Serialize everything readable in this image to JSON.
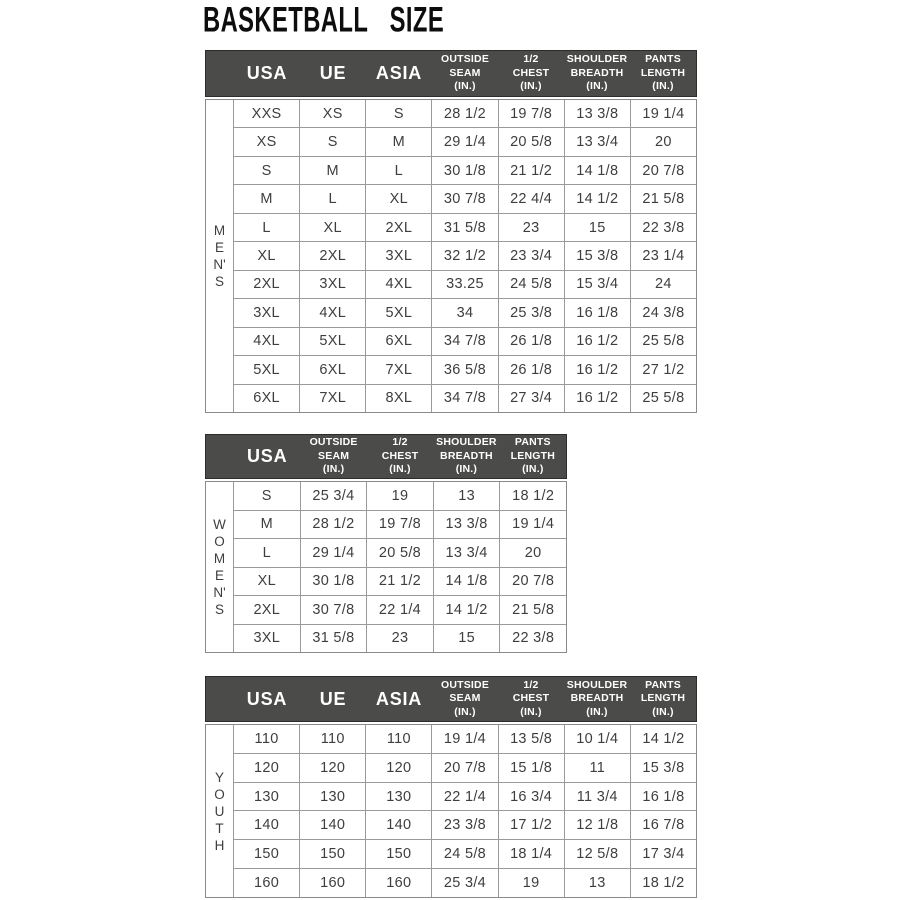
{
  "page": {
    "title": "BASKETBALL SIZE"
  },
  "colors": {
    "header_bg": "#4b4b4a",
    "header_text": "#ffffff",
    "body_text": "#3e3e3e",
    "grid_line": "#9a9a9a",
    "outer_border": "#8a8a8a",
    "title_text": "#0d0d0d",
    "page_bg": "#ffffff"
  },
  "tables": [
    {
      "name": "mens",
      "side_label": "M\nE\nN'\nS",
      "columns": [
        "USA",
        "UE",
        "ASIA",
        "OUTSIDE\nSEAM\n(IN.)",
        "1/2\nCHEST\n(IN.)",
        "SHOULDER\nBREADTH\n(IN.)",
        "PANTS\nLENGTH\n(IN.)"
      ],
      "rows": [
        [
          "XXS",
          "XS",
          "S",
          "28 1/2",
          "19 7/8",
          "13 3/8",
          "19 1/4"
        ],
        [
          "XS",
          "S",
          "M",
          "29 1/4",
          "20 5/8",
          "13 3/4",
          "20"
        ],
        [
          "S",
          "M",
          "L",
          "30 1/8",
          "21 1/2",
          "14 1/8",
          "20 7/8"
        ],
        [
          "M",
          "L",
          "XL",
          "30 7/8",
          "22 4/4",
          "14 1/2",
          "21 5/8"
        ],
        [
          "L",
          "XL",
          "2XL",
          "31 5/8",
          "23",
          "15",
          "22 3/8"
        ],
        [
          "XL",
          "2XL",
          "3XL",
          "32 1/2",
          "23 3/4",
          "15 3/8",
          "23 1/4"
        ],
        [
          "2XL",
          "3XL",
          "4XL",
          "33.25",
          "24 5/8",
          "15 3/4",
          "24"
        ],
        [
          "3XL",
          "4XL",
          "5XL",
          "34",
          "25 3/8",
          "16 1/8",
          "24 3/8"
        ],
        [
          "4XL",
          "5XL",
          "6XL",
          "34 7/8",
          "26 1/8",
          "16 1/2",
          "25 5/8"
        ],
        [
          "5XL",
          "6XL",
          "7XL",
          "36 5/8",
          "26 1/8",
          "16 1/2",
          "27 1/2"
        ],
        [
          "6XL",
          "7XL",
          "8XL",
          "34 7/8",
          "27 3/4",
          "16 1/2",
          "25 5/8"
        ]
      ]
    },
    {
      "name": "womens",
      "side_label": "W\nO\nM\nE\nN'\nS",
      "columns": [
        "USA",
        "OUTSIDE\nSEAM\n(IN.)",
        "1/2\nCHEST\n(IN.)",
        "SHOULDER\nBREADTH\n(IN.)",
        "PANTS\nLENGTH\n(IN.)"
      ],
      "rows": [
        [
          "S",
          "25 3/4",
          "19",
          "13",
          "18 1/2"
        ],
        [
          "M",
          "28 1/2",
          "19 7/8",
          "13 3/8",
          "19 1/4"
        ],
        [
          "L",
          "29 1/4",
          "20 5/8",
          "13 3/4",
          "20"
        ],
        [
          "XL",
          "30 1/8",
          "21 1/2",
          "14 1/8",
          "20 7/8"
        ],
        [
          "2XL",
          "30 7/8",
          "22 1/4",
          "14 1/2",
          "21 5/8"
        ],
        [
          "3XL",
          "31 5/8",
          "23",
          "15",
          "22 3/8"
        ]
      ]
    },
    {
      "name": "youth",
      "side_label": "Y\nO\nU\nT\nH",
      "columns": [
        "USA",
        "UE",
        "ASIA",
        "OUTSIDE\nSEAM\n(IN.)",
        "1/2\nCHEST\n(IN.)",
        "SHOULDER\nBREADTH\n(IN.)",
        "PANTS\nLENGTH\n(IN.)"
      ],
      "rows": [
        [
          "110",
          "110",
          "110",
          "19 1/4",
          "13 5/8",
          "10 1/4",
          "14 1/2"
        ],
        [
          "120",
          "120",
          "120",
          "20 7/8",
          "15 1/8",
          "11",
          "15 3/8"
        ],
        [
          "130",
          "130",
          "130",
          "22 1/4",
          "16 3/4",
          "11 3/4",
          "16 1/8"
        ],
        [
          "140",
          "140",
          "140",
          "23 3/8",
          "17 1/2",
          "12 1/8",
          "16 7/8"
        ],
        [
          "150",
          "150",
          "150",
          "24 5/8",
          "18 1/4",
          "12 5/8",
          "17 3/4"
        ],
        [
          "160",
          "160",
          "160",
          "25 3/4",
          "19",
          "13",
          "18 1/2"
        ]
      ]
    }
  ]
}
